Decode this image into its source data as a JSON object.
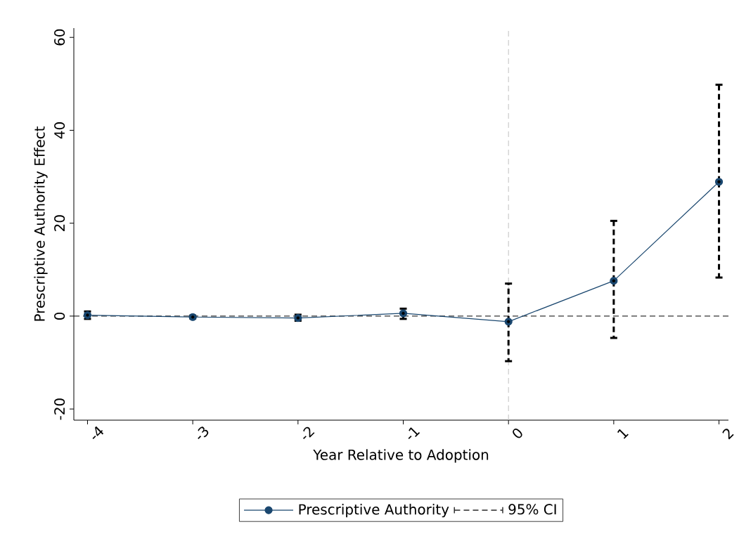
{
  "chart_data": {
    "type": "line",
    "xlabel": "Year Relative to Adoption",
    "ylabel": "Prescriptive Authority Effect",
    "x": [
      -4,
      -3,
      -2,
      -1,
      0,
      1,
      2
    ],
    "xlim": [
      -4.13,
      2.09
    ],
    "ylim": [
      -22.4,
      62
    ],
    "xticks": [
      -4,
      -3,
      -2,
      -1,
      0,
      1,
      2
    ],
    "yticks": [
      -20,
      0,
      20,
      40,
      60
    ],
    "series": [
      {
        "name": "Prescriptive Authority",
        "color": "#1a476f",
        "marker": "circle",
        "line_style": "solid",
        "values": [
          0.2,
          -0.2,
          -0.4,
          0.6,
          -1.2,
          7.6,
          28.9
        ]
      },
      {
        "name": "95% CI",
        "type": "scatter",
        "color": "#000000",
        "marker": "none",
        "line_style": "dashed",
        "values": [
          0.2,
          -0.2,
          -0.4,
          0.6,
          -1.2,
          7.6,
          28.9
        ],
        "errors": [
          [
            -0.6,
            1.0
          ],
          [
            -0.5,
            0.1
          ],
          [
            -1.0,
            0.3
          ],
          [
            -0.6,
            1.6
          ],
          [
            -9.7,
            7.0
          ],
          [
            -4.7,
            20.5
          ],
          [
            8.3,
            49.8
          ]
        ]
      }
    ],
    "ref_lines": [
      {
        "axis": "y",
        "value": 0,
        "color": "#000000",
        "line_style": "dashed"
      },
      {
        "axis": "x",
        "value": 0,
        "color": "#c0c0c0",
        "line_style": "dashed"
      }
    ],
    "legend": "bottom",
    "grid": false
  }
}
